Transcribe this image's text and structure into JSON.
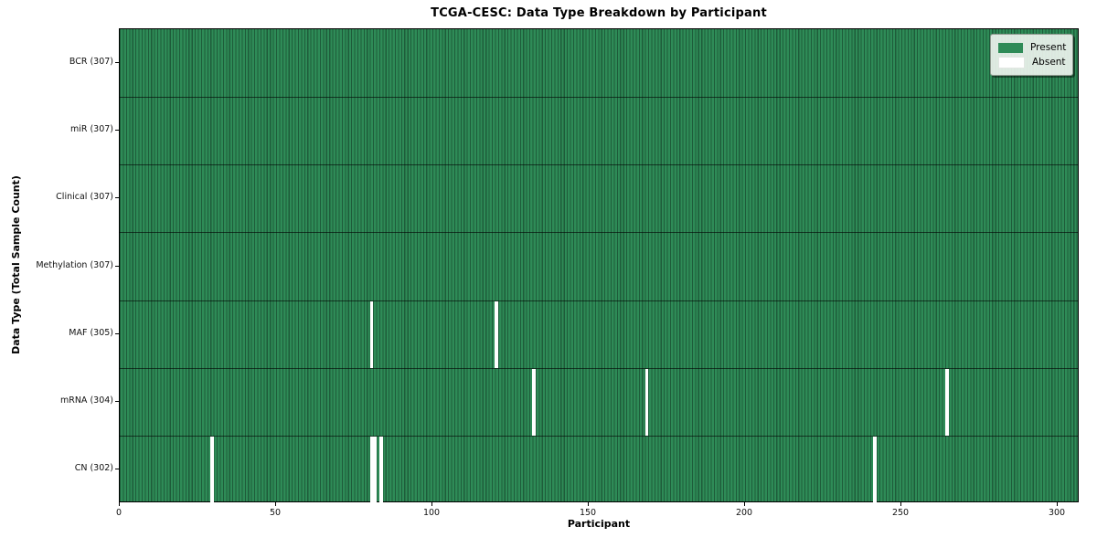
{
  "title": "TCGA-CESC: Data Type Breakdown by Participant",
  "colors": {
    "present": "#2e8b57",
    "cell_edge": "#1e5c3a",
    "absent": "#ffffff",
    "row_divider": "rgba(0,0,0,0.6)",
    "spine": "#000000"
  },
  "chart_data": {
    "type": "heatmap",
    "title": "TCGA-CESC: Data Type Breakdown by Participant",
    "xlabel": "Participant",
    "ylabel": "Data Type (Total Sample Count)",
    "x_range": [
      0,
      307
    ],
    "x_ticks": [
      0,
      50,
      100,
      150,
      200,
      250,
      300
    ],
    "n_participants": 307,
    "legend": {
      "present": "Present",
      "absent": "Absent"
    },
    "legend_position": "upper right",
    "grid": false,
    "rows": [
      {
        "label": "BCR (307)",
        "data_type": "BCR",
        "present_count": 307,
        "absent_participants": []
      },
      {
        "label": "miR (307)",
        "data_type": "miR",
        "present_count": 307,
        "absent_participants": []
      },
      {
        "label": "Clinical (307)",
        "data_type": "Clinical",
        "present_count": 307,
        "absent_participants": []
      },
      {
        "label": "Methylation (307)",
        "data_type": "Methylation",
        "present_count": 307,
        "absent_participants": []
      },
      {
        "label": "MAF (305)",
        "data_type": "MAF",
        "present_count": 305,
        "absent_participants": [
          80,
          120
        ]
      },
      {
        "label": "mRNA (304)",
        "data_type": "mRNA",
        "present_count": 304,
        "absent_participants": [
          132,
          168,
          264
        ]
      },
      {
        "label": "CN (302)",
        "data_type": "CN",
        "present_count": 302,
        "absent_participants": [
          29,
          80,
          81,
          83,
          241
        ]
      }
    ]
  }
}
